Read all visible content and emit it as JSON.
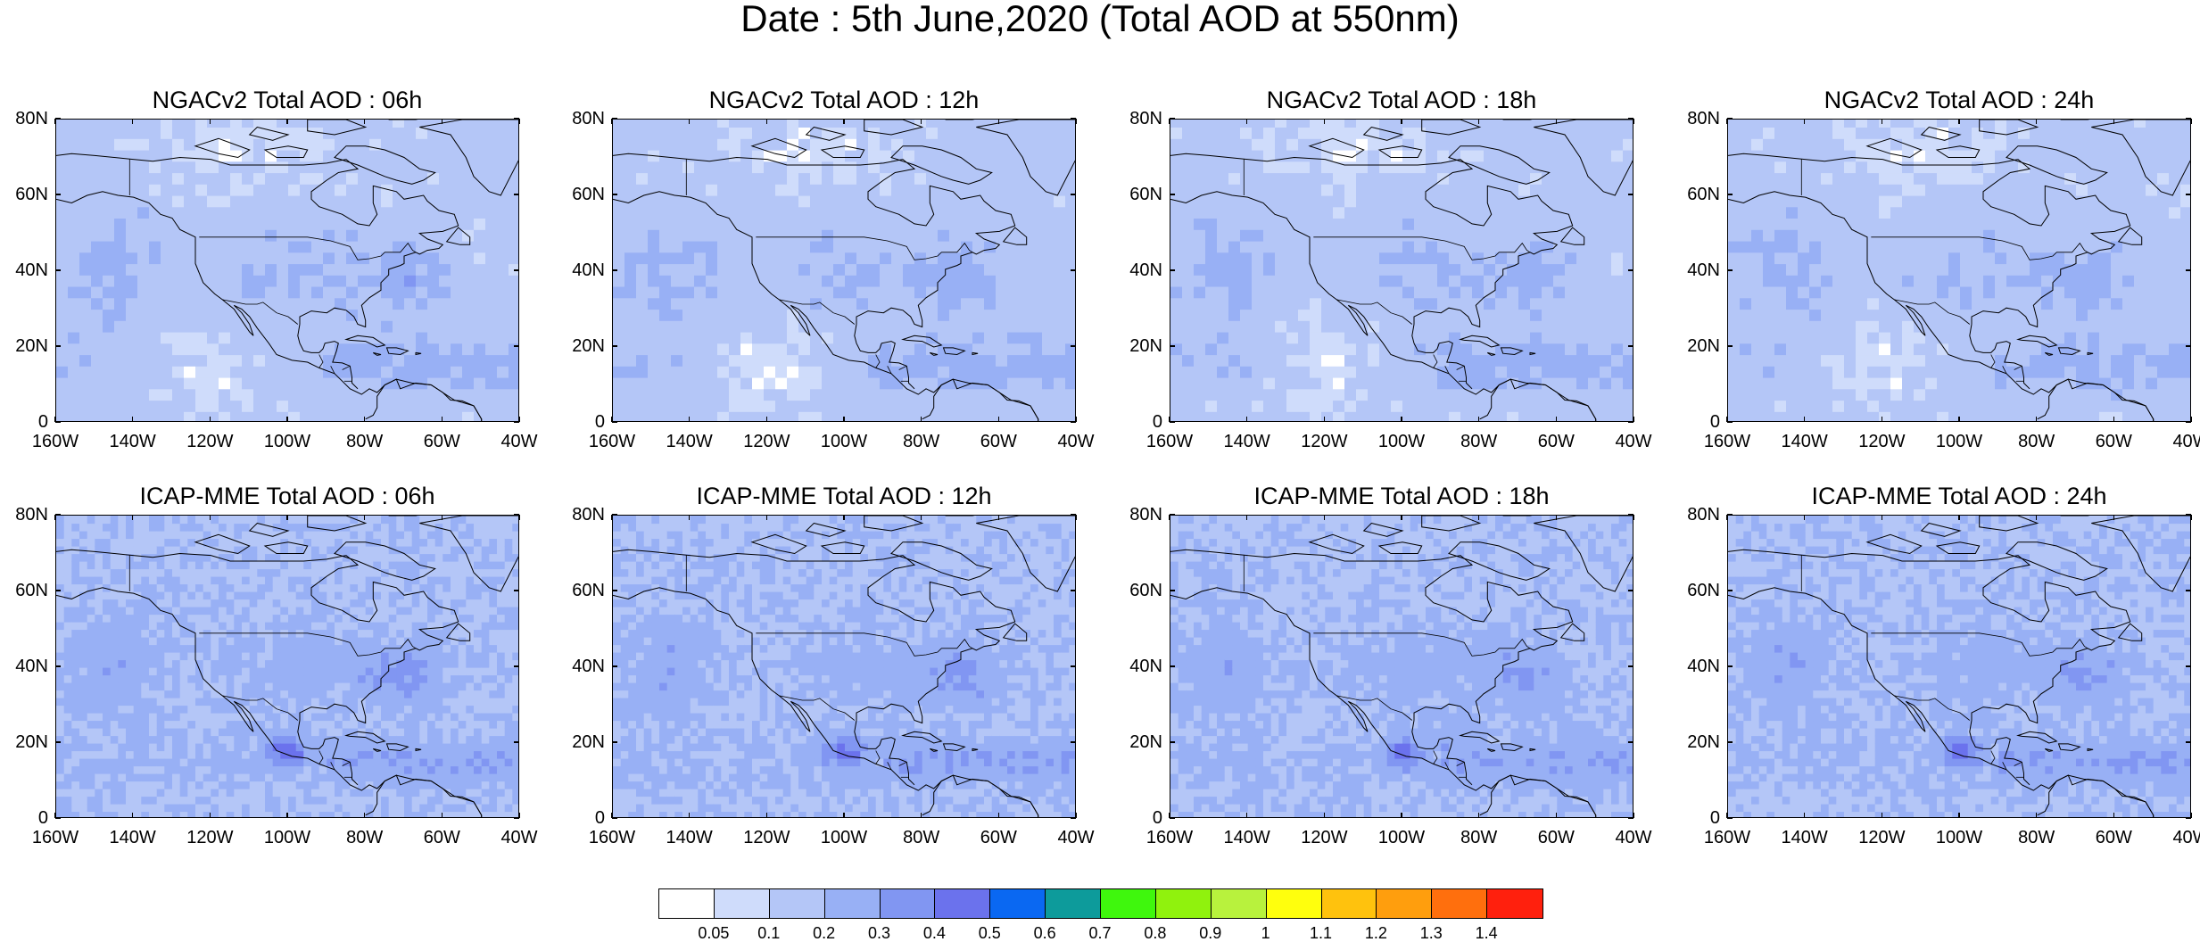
{
  "title": "Date : 5th June,2020 (Total AOD at 550nm)",
  "panels": [
    {
      "title": "NGACv2 Total AOD : 06h",
      "model": "NGACv2",
      "hour": "06h"
    },
    {
      "title": "NGACv2 Total AOD : 12h",
      "model": "NGACv2",
      "hour": "12h"
    },
    {
      "title": "NGACv2 Total AOD : 18h",
      "model": "NGACv2",
      "hour": "18h"
    },
    {
      "title": "NGACv2 Total AOD : 24h",
      "model": "NGACv2",
      "hour": "24h"
    },
    {
      "title": "ICAP-MME Total AOD : 06h",
      "model": "ICAP-MME",
      "hour": "06h"
    },
    {
      "title": "ICAP-MME Total AOD : 12h",
      "model": "ICAP-MME",
      "hour": "12h"
    },
    {
      "title": "ICAP-MME Total AOD : 18h",
      "model": "ICAP-MME",
      "hour": "18h"
    },
    {
      "title": "ICAP-MME Total AOD : 24h",
      "model": "ICAP-MME",
      "hour": "24h"
    }
  ],
  "axes": {
    "lat_labels": [
      "80N",
      "60N",
      "40N",
      "20N",
      "0"
    ],
    "lon_labels": [
      "160W",
      "140W",
      "120W",
      "100W",
      "80W",
      "60W",
      "40W"
    ]
  },
  "colorbar": {
    "colors": [
      "#ffffff",
      "#cfdcfb",
      "#b4c6f7",
      "#98b0f5",
      "#8196f2",
      "#6b72ed",
      "#0a68f2",
      "#0d9b9b",
      "#3ff70d",
      "#90f20d",
      "#b8f23d",
      "#ffff0d",
      "#ffc20d",
      "#ff9e0d",
      "#ff6f0d",
      "#ff200d"
    ],
    "labels": [
      "0.05",
      "0.1",
      "0.2",
      "0.3",
      "0.4",
      "0.5",
      "0.6",
      "0.7",
      "0.8",
      "0.9",
      "1",
      "1.1",
      "1.2",
      "1.3",
      "1.4"
    ]
  }
}
